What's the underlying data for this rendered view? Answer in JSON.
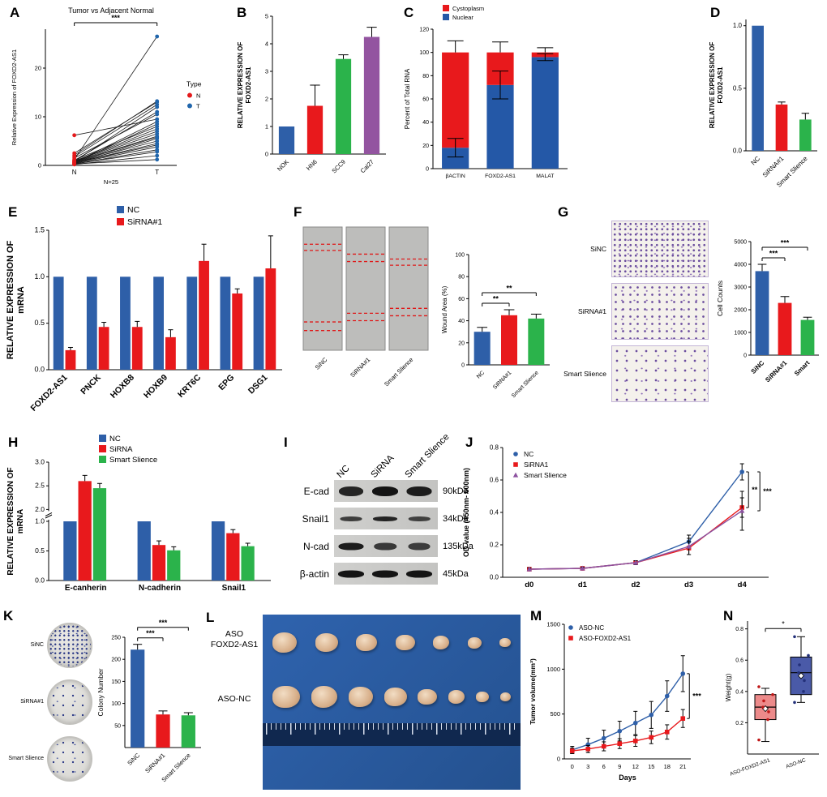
{
  "chart_data": {
    "A": {
      "letter": "A",
      "type": "paired",
      "title": "Tumor vs Adjacent Normal",
      "sig": "***",
      "ylabel": "Relative Expression of FOXD2-AS1",
      "xlabel": "N=25",
      "xticks": [
        "N",
        "T"
      ],
      "ylim": [
        0,
        28
      ],
      "yticks": [
        0,
        10,
        20
      ],
      "point_colors": [
        "#e41a1c",
        "#2166ac"
      ],
      "legend_title": "Type",
      "legend": [
        {
          "label": "N",
          "color": "#e41a1c"
        },
        {
          "label": "T",
          "color": "#2166ac"
        }
      ],
      "pairs": [
        [
          0.3,
          3.2
        ],
        [
          0.5,
          8.5
        ],
        [
          0.8,
          12.0
        ],
        [
          1.2,
          26.5
        ],
        [
          0.4,
          5.5
        ],
        [
          0.6,
          9.0
        ],
        [
          2.1,
          13.2
        ],
        [
          0.9,
          7.0
        ],
        [
          1.5,
          10.5
        ],
        [
          0.2,
          2.0
        ],
        [
          0.7,
          6.0
        ],
        [
          1.0,
          11.0
        ],
        [
          0.5,
          4.5
        ],
        [
          6.2,
          9.5
        ],
        [
          0.3,
          1.2
        ],
        [
          1.8,
          12.5
        ],
        [
          0.6,
          5.0
        ],
        [
          0.4,
          3.8
        ],
        [
          1.1,
          8.0
        ],
        [
          0.8,
          6.5
        ],
        [
          0.5,
          4.2
        ],
        [
          2.5,
          13.0
        ],
        [
          0.9,
          7.5
        ],
        [
          0.3,
          2.8
        ],
        [
          0.6,
          5.8
        ]
      ]
    },
    "B": {
      "letter": "B",
      "type": "bar",
      "ylabel": "RELATIVE EXPRESSION OF\nFOXD2-AS1",
      "categories": [
        "NOK",
        "HN6",
        "SCC9",
        "Cal27"
      ],
      "values": [
        1.0,
        1.75,
        3.45,
        4.25
      ],
      "errors": [
        0,
        0.75,
        0.15,
        0.35
      ],
      "colors": [
        "#2e5fa8",
        "#e8191c",
        "#2bb34b",
        "#9354a0"
      ],
      "ylim": [
        0,
        5
      ],
      "yticks": [
        0,
        1,
        2,
        3,
        4,
        5
      ]
    },
    "C": {
      "letter": "C",
      "type": "stackedbar",
      "ylabel": "Percent of Total RNA",
      "legend": [
        {
          "label": "Cystoplasm",
          "color": "#e8191c"
        },
        {
          "label": "Nuclear",
          "color": "#2458a7"
        }
      ],
      "categories": [
        "βACTIN",
        "FOXD2-AS1",
        "MALAT"
      ],
      "nuclear": [
        18,
        72,
        96
      ],
      "cytoplasm": [
        82,
        28,
        4
      ],
      "boundary_errors": [
        8,
        12,
        3
      ],
      "total_errors": [
        10,
        9,
        4
      ],
      "ylim": [
        0,
        120
      ],
      "yticks": [
        0,
        20,
        40,
        60,
        80,
        100,
        120
      ]
    },
    "D": {
      "letter": "D",
      "type": "bar",
      "ylabel": "RELATIVE EXPRESSION OF\nFOXD2-AS1",
      "categories": [
        "NC",
        "SiRNA#1",
        "Smart Slience"
      ],
      "values": [
        1.0,
        0.37,
        0.25
      ],
      "errors": [
        0,
        0.02,
        0.05
      ],
      "colors": [
        "#2e5fa8",
        "#e8191c",
        "#2bb34b"
      ],
      "ylim": [
        0,
        1.05
      ],
      "yticks": [
        0,
        0.5,
        1.0
      ]
    },
    "E": {
      "letter": "E",
      "type": "groupedbar",
      "ylabel": "RELATIVE EXPRESSION OF\nmRNA",
      "categories": [
        "FOXD2-AS1",
        "PNCK",
        "HOXB8",
        "HOXB9",
        "KRT6C",
        "EPG",
        "DSG1"
      ],
      "series": [
        {
          "name": "NC",
          "color": "#2e5fa8",
          "values": [
            1,
            1,
            1,
            1,
            1,
            1,
            1
          ],
          "errors": [
            0,
            0,
            0,
            0,
            0,
            0,
            0
          ]
        },
        {
          "name": "SiRNA#1",
          "color": "#e8191c",
          "values": [
            0.21,
            0.46,
            0.46,
            0.35,
            1.17,
            0.82,
            1.09
          ],
          "errors": [
            0.03,
            0.05,
            0.06,
            0.08,
            0.18,
            0.05,
            0.35
          ]
        }
      ],
      "ylim": [
        0,
        1.5
      ],
      "yticks": [
        0,
        0.5,
        1.0,
        1.5
      ]
    },
    "F": {
      "letter": "F",
      "images": {
        "type": "wound",
        "items": [
          {
            "label": "SiNC",
            "lines": [
              0.14,
              0.19,
              0.77,
              0.84
            ]
          },
          {
            "label": "SiRNA#1",
            "lines": [
              0.22,
              0.28,
              0.7,
              0.76
            ]
          },
          {
            "label": "Smart Slience",
            "lines": [
              0.26,
              0.31,
              0.66,
              0.72
            ]
          }
        ]
      },
      "chart": {
        "type": "bar",
        "ylabel": "Wound Area (%)",
        "categories": [
          "NC",
          "SiRNA#1",
          "Smart Slience"
        ],
        "values": [
          30,
          45,
          42
        ],
        "errors": [
          4,
          5,
          4
        ],
        "colors": [
          "#2e5fa8",
          "#e8191c",
          "#2bb34b"
        ],
        "ylim": [
          0,
          100
        ],
        "yticks": [
          0,
          20,
          40,
          60,
          80,
          100
        ],
        "sig": [
          {
            "a": 0,
            "b": 1,
            "label": "**"
          },
          {
            "a": 0,
            "b": 2,
            "label": "**"
          }
        ]
      }
    },
    "G": {
      "letter": "G",
      "images": {
        "type": "transwell",
        "items": [
          {
            "label": "SiNC",
            "spacing": 6.5
          },
          {
            "label": "SiRNA#1",
            "spacing": 9
          },
          {
            "label": "Smart Slience",
            "spacing": 12
          }
        ]
      },
      "chart": {
        "type": "bar",
        "ylabel": "Cell Counts",
        "categories": [
          "SiNC",
          "SiRNA#1",
          "Smart"
        ],
        "values": [
          3700,
          2300,
          1550
        ],
        "errors": [
          300,
          280,
          120
        ],
        "colors": [
          "#2e5fa8",
          "#e8191c",
          "#2bb34b"
        ],
        "ylim": [
          0,
          5000
        ],
        "yticks": [
          0,
          1000,
          2000,
          3000,
          4000,
          5000
        ],
        "sig": [
          {
            "a": 0,
            "b": 1,
            "label": "***"
          },
          {
            "a": 0,
            "b": 2,
            "label": "***"
          }
        ]
      }
    },
    "H": {
      "letter": "H",
      "type": "brokenbar",
      "ylabel": "RELATIVE EXPRESSION OF\nmRNA",
      "categories": [
        "E-canherin",
        "N-cadherin",
        "Snail1"
      ],
      "series": [
        {
          "name": "NC",
          "color": "#2e5fa8",
          "values": [
            1,
            1,
            1
          ],
          "errors": [
            0,
            0,
            0
          ]
        },
        {
          "name": "SiRNA",
          "color": "#e8191c",
          "values": [
            2.6,
            0.6,
            0.8
          ],
          "errors": [
            0.12,
            0.07,
            0.06
          ]
        },
        {
          "name": "Smart Slience",
          "color": "#2bb34b",
          "values": [
            2.45,
            0.51,
            0.58
          ],
          "errors": [
            0.1,
            0.06,
            0.05
          ]
        }
      ],
      "yticks_lower": [
        0,
        0.5,
        1.0
      ],
      "yticks_upper": [
        2.0,
        2.5,
        3.0
      ]
    },
    "I": {
      "letter": "I",
      "type": "blot",
      "col_labels": [
        "NC",
        "SiRNA",
        "Smart Slience"
      ],
      "rows": [
        {
          "protein": "E-cad",
          "size": "90kDa",
          "bands": [
            0.8,
            1.0,
            0.9
          ],
          "band_h": 12
        },
        {
          "protein": "Snail1",
          "size": "34kDa",
          "bands": [
            0.5,
            0.8,
            0.45
          ],
          "band_h": 6
        },
        {
          "protein": "N-cad",
          "size": "135kDa",
          "bands": [
            0.9,
            0.55,
            0.5
          ],
          "band_h": 9
        },
        {
          "protein": "β-actin",
          "size": "45kDa",
          "bands": [
            1.0,
            1.0,
            1.0
          ],
          "band_h": 9
        }
      ]
    },
    "J": {
      "letter": "J",
      "type": "line",
      "ylabel": "OD value (450nm- 600nm)",
      "x": [
        "d0",
        "d1",
        "d2",
        "d3",
        "d4"
      ],
      "series": [
        {
          "name": "NC",
          "color": "#2e5fa8",
          "marker": "circle",
          "values": [
            0.05,
            0.055,
            0.09,
            0.22,
            0.65
          ],
          "errors": [
            0.008,
            0.008,
            0.012,
            0.04,
            0.05
          ]
        },
        {
          "name": "SiRNA1",
          "color": "#e8191c",
          "marker": "square",
          "values": [
            0.05,
            0.055,
            0.09,
            0.18,
            0.43
          ],
          "errors": [
            0.008,
            0.008,
            0.012,
            0.04,
            0.06
          ]
        },
        {
          "name": "Smart Slience",
          "color": "#8d52a0",
          "marker": "triangle",
          "values": [
            0.05,
            0.055,
            0.09,
            0.19,
            0.41
          ],
          "errors": [
            0.008,
            0.008,
            0.012,
            0.05,
            0.12
          ]
        }
      ],
      "ylim": [
        0,
        0.8
      ],
      "yticks": [
        0,
        0.2,
        0.4,
        0.6,
        0.8
      ],
      "sig": [
        "**",
        "***"
      ]
    },
    "K": {
      "letter": "K",
      "dishes": {
        "type": "dishes",
        "items": [
          {
            "label": "SiNC",
            "spacing": 5.5
          },
          {
            "label": "SiRNA#1",
            "spacing": 12
          },
          {
            "label": "Smart Slience",
            "spacing": 12
          }
        ]
      },
      "chart": {
        "type": "bar",
        "ylabel": "Colony Number",
        "categories": [
          "SiNC",
          "SiRNA#1",
          "Smart Slience"
        ],
        "values": [
          222,
          75,
          73
        ],
        "errors": [
          12,
          8,
          6
        ],
        "colors": [
          "#2e5fa8",
          "#e8191c",
          "#2bb34b"
        ],
        "ylim": [
          0,
          250
        ],
        "yticks": [
          50,
          100,
          150,
          200,
          250
        ],
        "sig": [
          {
            "a": 0,
            "b": 1,
            "label": "***"
          },
          {
            "a": 0,
            "b": 2,
            "label": "***"
          }
        ]
      }
    },
    "L": {
      "letter": "L",
      "label_top_1": "ASO",
      "label_top_2": "FOXD2-AS1",
      "label_bottom": "ASO-NC",
      "photo": {
        "type": "tumorphoto",
        "rows": [
          {
            "y": 0.16,
            "sizes": [
              30,
              28,
              26,
              24,
              20,
              17,
              14
            ]
          },
          {
            "y": 0.47,
            "sizes": [
              34,
              32,
              30,
              28,
              24,
              20,
              16,
              13
            ]
          }
        ],
        "ruler_y": 0.62
      }
    },
    "M": {
      "letter": "M",
      "type": "line",
      "ylabel": "Tumor volume(mm³)",
      "xlabel": "Days",
      "x": [
        0,
        3,
        6,
        9,
        12,
        15,
        18,
        21
      ],
      "series": [
        {
          "name": "ASO-NC",
          "color": "#2e5fa8",
          "marker": "circle",
          "values": [
            100,
            160,
            230,
            310,
            400,
            490,
            700,
            950
          ],
          "errors": [
            40,
            70,
            90,
            110,
            130,
            150,
            170,
            200
          ]
        },
        {
          "name": "ASO-FOXD2-AS1",
          "color": "#e8191c",
          "marker": "square",
          "values": [
            90,
            110,
            140,
            170,
            200,
            240,
            300,
            450
          ],
          "errors": [
            30,
            40,
            50,
            55,
            60,
            70,
            80,
            100
          ]
        }
      ],
      "ylim": [
        0,
        1500
      ],
      "yticks": [
        0,
        500,
        1000,
        1500
      ],
      "sig": [
        "***"
      ]
    },
    "N": {
      "letter": "N",
      "type": "box",
      "ylabel": "Weight(g)",
      "sig": "*",
      "categories": [
        "ASO-FOXD2-AS1",
        "ASO-NC"
      ],
      "boxes": [
        {
          "color": "#ec8a8a",
          "point_color": "#c01818",
          "whisker_low": 0.08,
          "q1": 0.22,
          "median": 0.3,
          "q3": 0.38,
          "whisker_high": 0.42,
          "mean": 0.29,
          "points": [
            0.09,
            0.22,
            0.27,
            0.3,
            0.34,
            0.38,
            0.43
          ]
        },
        {
          "color": "#4a5aa8",
          "point_color": "#23307a",
          "whisker_low": 0.33,
          "q1": 0.38,
          "median": 0.52,
          "q3": 0.62,
          "whisker_high": 0.75,
          "mean": 0.5,
          "points": [
            0.33,
            0.4,
            0.47,
            0.52,
            0.57,
            0.63,
            0.75
          ]
        }
      ],
      "ylim": [
        0,
        0.85
      ],
      "yticks": [
        0.2,
        0.4,
        0.6,
        0.8
      ]
    }
  }
}
